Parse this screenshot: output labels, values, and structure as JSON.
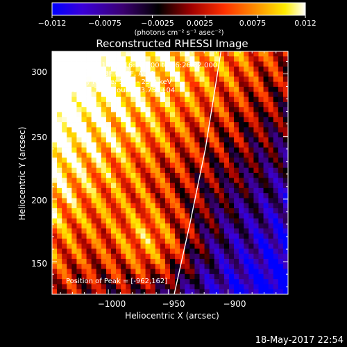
{
  "chart_data": {
    "type": "heatmap",
    "title": "Reconstructed RHESSI Image",
    "xlabel": "Heliocentric X (arcsec)",
    "ylabel": "Heliocentric Y (arcsec)",
    "xlim": [
      -1047,
      -850
    ],
    "ylim": [
      124,
      318
    ],
    "x_ticks": [
      -1000,
      -950,
      -900
    ],
    "x_tick_labels": [
      "−1000",
      "−950",
      "−900"
    ],
    "y_ticks": [
      150,
      200,
      250,
      300
    ],
    "y_tick_labels": [
      "150",
      "200",
      "250",
      "300"
    ],
    "colorbar": {
      "range": [
        -0.012,
        0.012
      ],
      "ticks": [
        -0.012,
        -0.0075,
        -0.0025,
        0.0025,
        0.0075,
        0.012
      ],
      "tick_labels": [
        "−0.012",
        "−0.0075",
        "−0.0025",
        "0.0025",
        "0.0075",
        "0.012"
      ],
      "unit_label": "(photons cm⁻² s⁻¹ asec⁻²)",
      "colors": [
        "#0000ff",
        "#4a00b0",
        "#000000",
        "#b00000",
        "#ff4000",
        "#ff9a00",
        "#ffee00",
        "#ffffff"
      ]
    },
    "annotations": [
      "28-Sep-2014 06:16:32.000 to 06:26:32.000",
      "Detectors: 3F 6F 9F, Att 1",
      "Energy Range: 12.0 - 25.0 keV",
      "Clean    Total counts: 3.75E+04"
    ],
    "peak_label": "Position of Peak = [-962,162]",
    "peak_position": [
      -962,
      162
    ],
    "limb_line": [
      [
        -945,
        124
      ],
      [
        -932,
        180
      ],
      [
        -919,
        240
      ],
      [
        -906,
        318
      ]
    ],
    "grid": false
  },
  "footer": {
    "timestamp": "18-May-2017 22:54"
  }
}
